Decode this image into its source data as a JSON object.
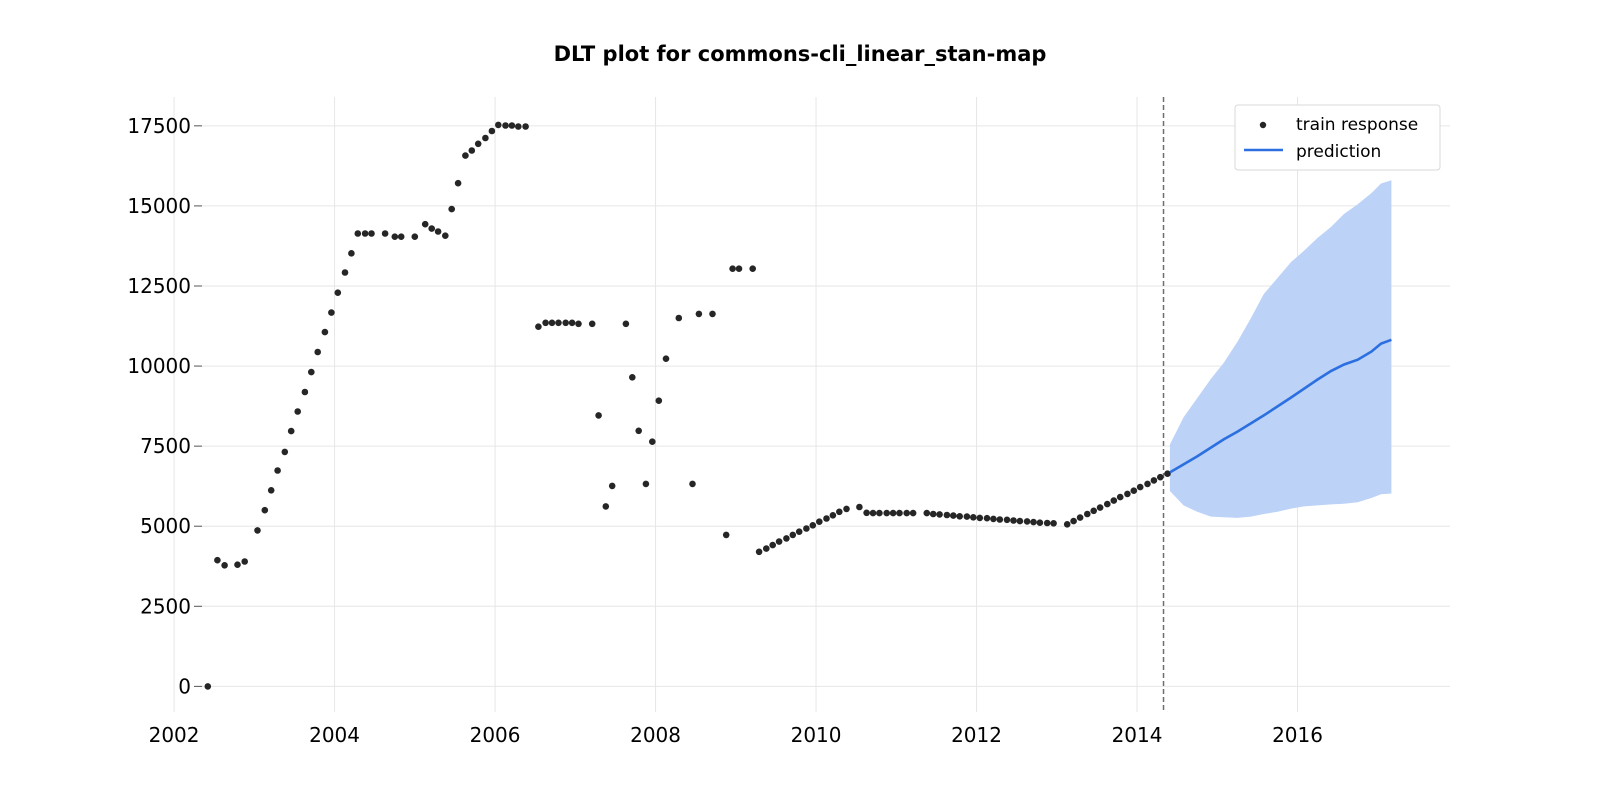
{
  "chart_data": {
    "type": "scatter",
    "title": "DLT plot for commons-cli_linear_stan-map",
    "xlabel": "",
    "ylabel": "",
    "xlim": [
      2001.7,
      2017.9
    ],
    "ylim": [
      -800,
      18400
    ],
    "grid": true,
    "x_ticks": [
      {
        "value": 2002,
        "label": "2002"
      },
      {
        "value": 2004,
        "label": "2004"
      },
      {
        "value": 2006,
        "label": "2006"
      },
      {
        "value": 2008,
        "label": "2008"
      },
      {
        "value": 2010,
        "label": "2010"
      },
      {
        "value": 2012,
        "label": "2012"
      },
      {
        "value": 2014,
        "label": "2014"
      },
      {
        "value": 2016,
        "label": "2016"
      }
    ],
    "y_ticks": [
      {
        "value": 0,
        "label": "0"
      },
      {
        "value": 2500,
        "label": "2500"
      },
      {
        "value": 5000,
        "label": "5000"
      },
      {
        "value": 7500,
        "label": "7500"
      },
      {
        "value": 10000,
        "label": "10000"
      },
      {
        "value": 12500,
        "label": "12500"
      },
      {
        "value": 15000,
        "label": "15000"
      },
      {
        "value": 17500,
        "label": "17500"
      }
    ],
    "legend": {
      "placement": "top-right",
      "entries": [
        {
          "label": "train response",
          "kind": "dot"
        },
        {
          "label": "prediction",
          "kind": "line"
        }
      ]
    },
    "colors": {
      "train": "#262626",
      "prediction": "#2b6fe0",
      "band": "#bcd2f7",
      "cutoff": "#6e6e6e"
    },
    "train_cutoff_x": 2014.33,
    "series": [
      {
        "name": "train response",
        "kind": "scatter",
        "points": [
          [
            2002.42,
            0
          ],
          [
            2002.54,
            3940
          ],
          [
            2002.63,
            3780
          ],
          [
            2002.79,
            3800
          ],
          [
            2002.88,
            3900
          ],
          [
            2003.04,
            4870
          ],
          [
            2003.13,
            5500
          ],
          [
            2003.21,
            6120
          ],
          [
            2003.29,
            6740
          ],
          [
            2003.38,
            7320
          ],
          [
            2003.46,
            7970
          ],
          [
            2003.54,
            8580
          ],
          [
            2003.63,
            9190
          ],
          [
            2003.71,
            9810
          ],
          [
            2003.79,
            10440
          ],
          [
            2003.88,
            11060
          ],
          [
            2003.96,
            11670
          ],
          [
            2004.04,
            12290
          ],
          [
            2004.13,
            12920
          ],
          [
            2004.21,
            13520
          ],
          [
            2004.29,
            14140
          ],
          [
            2004.38,
            14140
          ],
          [
            2004.46,
            14140
          ],
          [
            2004.63,
            14140
          ],
          [
            2004.75,
            14040
          ],
          [
            2004.83,
            14040
          ],
          [
            2005.0,
            14040
          ],
          [
            2005.13,
            14430
          ],
          [
            2005.21,
            14290
          ],
          [
            2005.29,
            14200
          ],
          [
            2005.38,
            14070
          ],
          [
            2005.46,
            14900
          ],
          [
            2005.54,
            15710
          ],
          [
            2005.63,
            16570
          ],
          [
            2005.71,
            16730
          ],
          [
            2005.79,
            16940
          ],
          [
            2005.88,
            17120
          ],
          [
            2005.96,
            17340
          ],
          [
            2006.04,
            17530
          ],
          [
            2006.13,
            17510
          ],
          [
            2006.21,
            17510
          ],
          [
            2006.29,
            17480
          ],
          [
            2006.38,
            17480
          ],
          [
            2006.54,
            11230
          ],
          [
            2006.63,
            11350
          ],
          [
            2006.71,
            11350
          ],
          [
            2006.79,
            11350
          ],
          [
            2006.88,
            11350
          ],
          [
            2006.96,
            11350
          ],
          [
            2007.04,
            11320
          ],
          [
            2007.21,
            11320
          ],
          [
            2007.29,
            8460
          ],
          [
            2007.38,
            5620
          ],
          [
            2007.46,
            6260
          ],
          [
            2007.63,
            11320
          ],
          [
            2007.71,
            9650
          ],
          [
            2007.79,
            7980
          ],
          [
            2007.88,
            6320
          ],
          [
            2007.96,
            7640
          ],
          [
            2008.04,
            8920
          ],
          [
            2008.13,
            10230
          ],
          [
            2008.29,
            11500
          ],
          [
            2008.46,
            6320
          ],
          [
            2008.54,
            11630
          ],
          [
            2008.71,
            11630
          ],
          [
            2008.88,
            4730
          ],
          [
            2008.96,
            13040
          ],
          [
            2009.04,
            13040
          ],
          [
            2009.21,
            13040
          ],
          [
            2009.29,
            4200
          ],
          [
            2009.38,
            4300
          ],
          [
            2009.46,
            4410
          ],
          [
            2009.54,
            4520
          ],
          [
            2009.63,
            4620
          ],
          [
            2009.71,
            4730
          ],
          [
            2009.79,
            4830
          ],
          [
            2009.88,
            4930
          ],
          [
            2009.96,
            5030
          ],
          [
            2010.04,
            5140
          ],
          [
            2010.13,
            5240
          ],
          [
            2010.21,
            5340
          ],
          [
            2010.29,
            5450
          ],
          [
            2010.38,
            5540
          ],
          [
            2010.54,
            5600
          ],
          [
            2010.63,
            5420
          ],
          [
            2010.71,
            5410
          ],
          [
            2010.79,
            5410
          ],
          [
            2010.88,
            5410
          ],
          [
            2010.96,
            5410
          ],
          [
            2011.04,
            5410
          ],
          [
            2011.13,
            5410
          ],
          [
            2011.21,
            5410
          ],
          [
            2011.38,
            5410
          ],
          [
            2011.46,
            5380
          ],
          [
            2011.54,
            5370
          ],
          [
            2011.63,
            5350
          ],
          [
            2011.71,
            5330
          ],
          [
            2011.79,
            5310
          ],
          [
            2011.88,
            5300
          ],
          [
            2011.96,
            5280
          ],
          [
            2012.04,
            5260
          ],
          [
            2012.13,
            5250
          ],
          [
            2012.21,
            5230
          ],
          [
            2012.29,
            5210
          ],
          [
            2012.38,
            5200
          ],
          [
            2012.46,
            5180
          ],
          [
            2012.54,
            5160
          ],
          [
            2012.63,
            5150
          ],
          [
            2012.71,
            5130
          ],
          [
            2012.79,
            5110
          ],
          [
            2012.88,
            5100
          ],
          [
            2012.96,
            5090
          ],
          [
            2013.13,
            5060
          ],
          [
            2013.21,
            5160
          ],
          [
            2013.29,
            5270
          ],
          [
            2013.38,
            5380
          ],
          [
            2013.46,
            5480
          ],
          [
            2013.54,
            5580
          ],
          [
            2013.63,
            5690
          ],
          [
            2013.71,
            5800
          ],
          [
            2013.79,
            5910
          ],
          [
            2013.88,
            6010
          ],
          [
            2013.96,
            6110
          ],
          [
            2014.04,
            6220
          ],
          [
            2014.13,
            6320
          ],
          [
            2014.21,
            6430
          ],
          [
            2014.29,
            6530
          ],
          [
            2014.38,
            6640
          ]
        ]
      },
      {
        "name": "prediction",
        "kind": "line",
        "points": [
          [
            2014.41,
            6680
          ],
          [
            2014.75,
            7180
          ],
          [
            2015.08,
            7710
          ],
          [
            2015.25,
            7950
          ],
          [
            2015.58,
            8460
          ],
          [
            2015.92,
            9020
          ],
          [
            2016.25,
            9580
          ],
          [
            2016.42,
            9850
          ],
          [
            2016.58,
            10050
          ],
          [
            2016.75,
            10200
          ],
          [
            2016.92,
            10450
          ],
          [
            2017.04,
            10700
          ],
          [
            2017.17,
            10820
          ]
        ],
        "band": {
          "x": [
            2014.41,
            2014.58,
            2014.75,
            2014.92,
            2015.08,
            2015.25,
            2015.42,
            2015.58,
            2015.75,
            2015.92,
            2016.08,
            2016.25,
            2016.42,
            2016.58,
            2016.75,
            2016.92,
            2017.04,
            2017.17
          ],
          "upper": [
            7550,
            8400,
            9000,
            9600,
            10100,
            10750,
            11500,
            12250,
            12750,
            13250,
            13600,
            14000,
            14350,
            14750,
            15050,
            15400,
            15700,
            15800
          ],
          "lower": [
            6100,
            5650,
            5450,
            5300,
            5280,
            5260,
            5300,
            5380,
            5450,
            5550,
            5620,
            5650,
            5680,
            5700,
            5750,
            5880,
            6000,
            6020
          ]
        }
      }
    ]
  }
}
